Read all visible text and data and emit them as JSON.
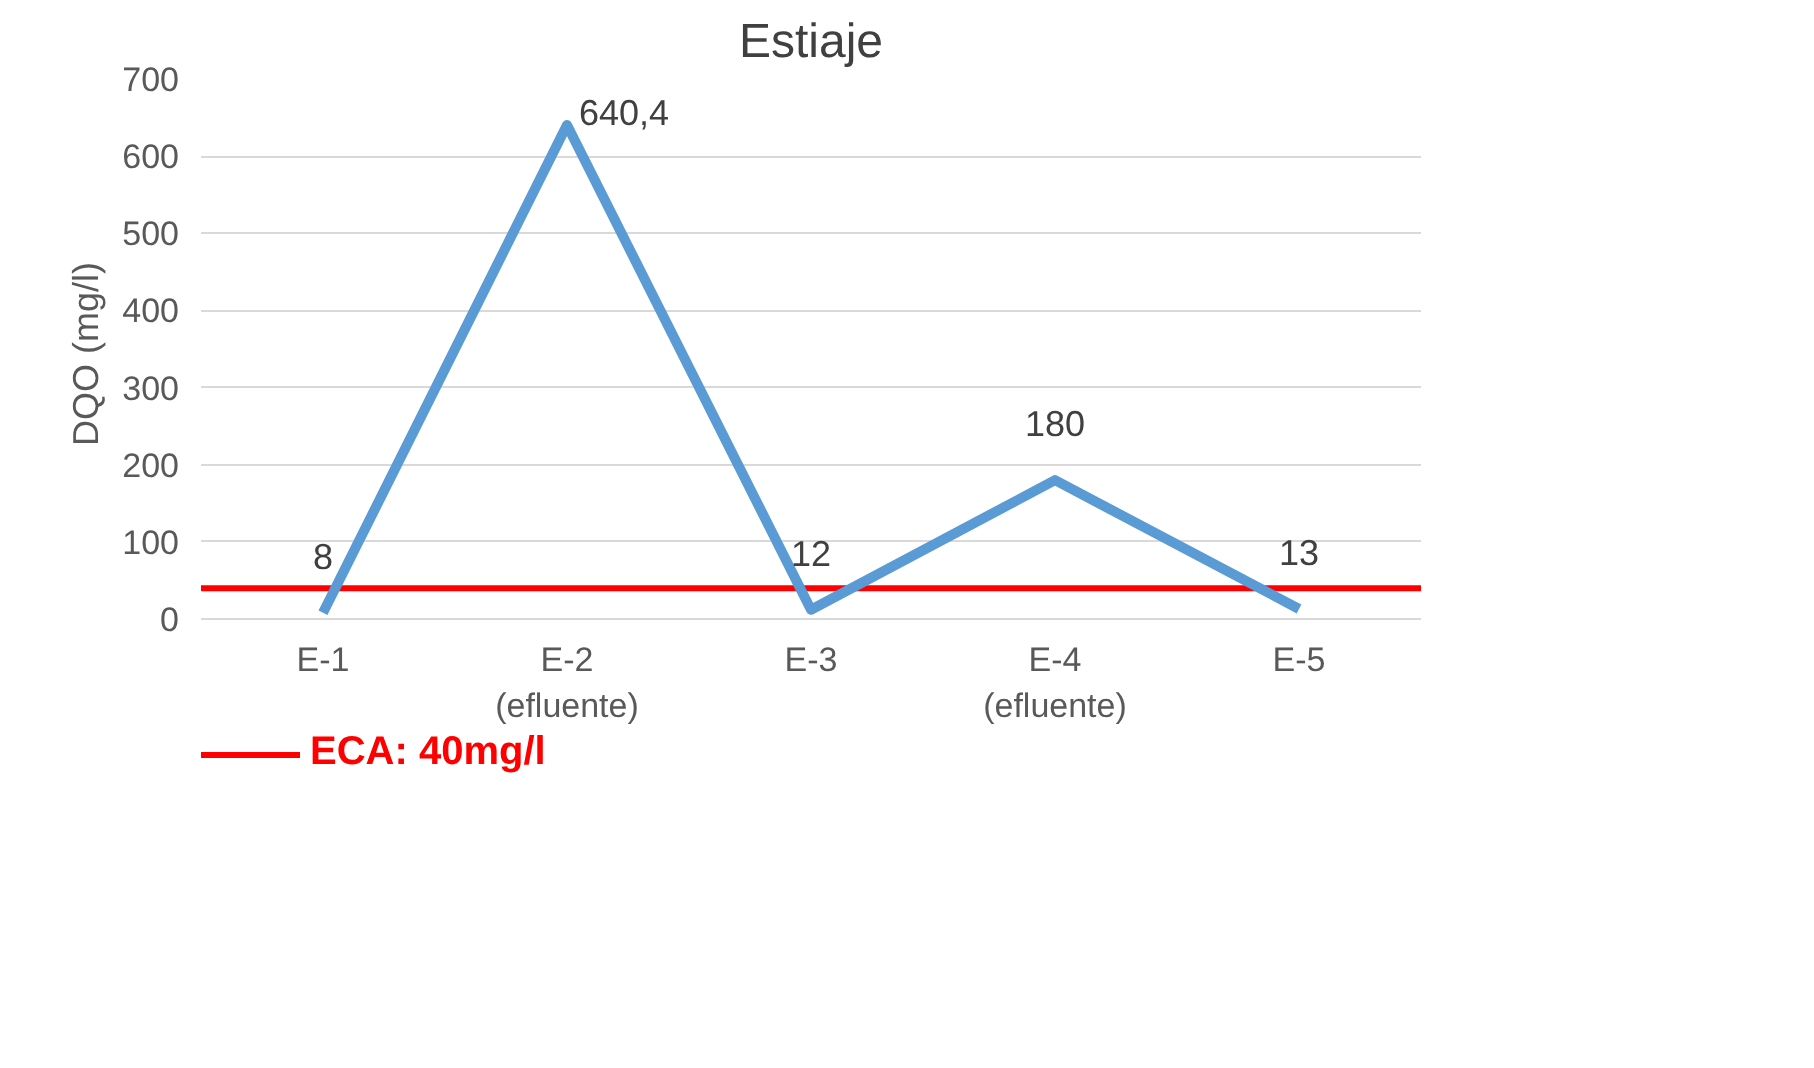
{
  "chart_data": {
    "type": "line",
    "title": "Estiaje",
    "ylabel": "DQO  (mg/l)",
    "categories": [
      "E-1",
      "E-2\n(efluente)",
      "E-3",
      "E-4\n(efluente)",
      "E-5"
    ],
    "series": [
      {
        "color": "#5b9bd5",
        "values": [
          8,
          640.4,
          12,
          180,
          13
        ],
        "value_labels": [
          "8",
          "640,4",
          "12",
          "180",
          "13"
        ]
      }
    ],
    "ylim": [
      0,
      700
    ],
    "yticks": [
      0,
      100,
      200,
      300,
      400,
      500,
      600,
      700
    ],
    "grid": "y",
    "ref_lines": [
      {
        "axis": "y",
        "value": 40,
        "label": "ECA: 40mg/l",
        "color": "#ff0000"
      }
    ],
    "legend": "bottom left"
  }
}
